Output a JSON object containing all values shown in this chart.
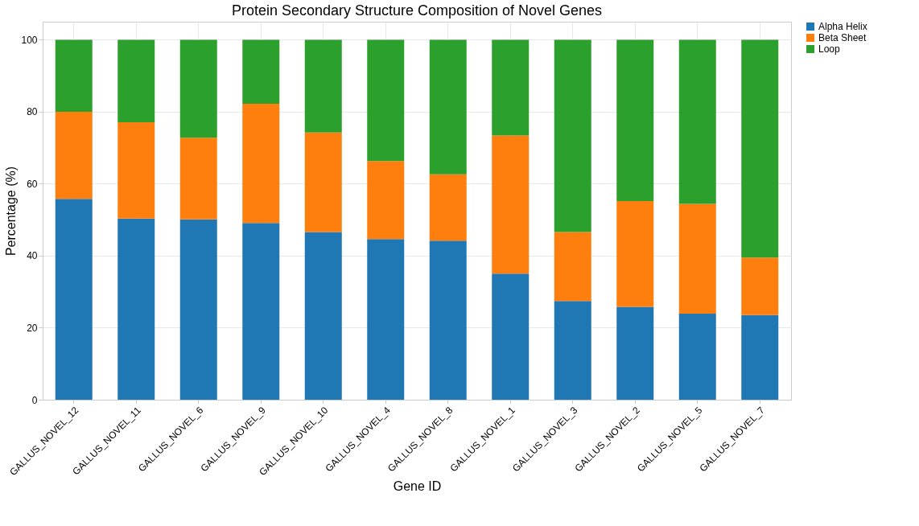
{
  "chart_data": {
    "type": "bar",
    "title": "Protein Secondary Structure Composition of Novel Genes",
    "xlabel": "Gene ID",
    "ylabel": "Percentage (%)",
    "categories": [
      "GALLUS_NOVEL_12",
      "GALLUS_NOVEL_11",
      "GALLUS_NOVEL_6",
      "GALLUS_NOVEL_9",
      "GALLUS_NOVEL_10",
      "GALLUS_NOVEL_4",
      "GALLUS_NOVEL_8",
      "GALLUS_NOVEL_1",
      "GALLUS_NOVEL_3",
      "GALLUS_NOVEL_2",
      "GALLUS_NOVEL_5",
      "GALLUS_NOVEL_7"
    ],
    "stacked": true,
    "series": [
      {
        "name": "Alpha Helix",
        "color": "#1f77b4",
        "values": [
          55.8,
          50.3,
          50.1,
          49.1,
          46.6,
          44.6,
          44.2,
          35.0,
          27.4,
          25.8,
          23.9,
          23.5
        ]
      },
      {
        "name": "Beta Sheet",
        "color": "#ff7f0e",
        "values": [
          24.2,
          26.8,
          22.7,
          33.1,
          27.6,
          21.7,
          18.4,
          38.4,
          19.2,
          29.4,
          30.5,
          16.0
        ]
      },
      {
        "name": "Loop",
        "color": "#2ca02c",
        "values": [
          20.0,
          22.9,
          27.2,
          17.8,
          25.8,
          33.7,
          37.4,
          26.6,
          53.4,
          44.8,
          45.6,
          60.5
        ]
      }
    ],
    "ylim": [
      0,
      105
    ],
    "yticks": [
      0,
      20,
      40,
      60,
      80,
      100
    ],
    "grid": true,
    "legend": "top right"
  }
}
